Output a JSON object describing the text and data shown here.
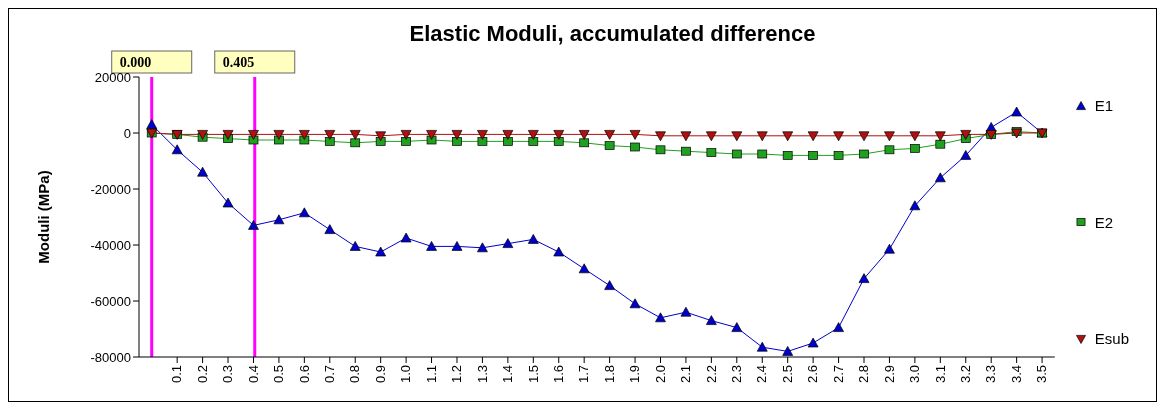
{
  "chart_data": {
    "type": "line",
    "title": "Elastic Moduli, accumulated difference",
    "ylabel": "Moduli (MPa)",
    "x": [
      0,
      0.1,
      0.2,
      0.3,
      0.4,
      0.5,
      0.6,
      0.7,
      0.8,
      0.9,
      1.0,
      1.1,
      1.2,
      1.3,
      1.4,
      1.5,
      1.6,
      1.7,
      1.8,
      1.9,
      2.0,
      2.1,
      2.2,
      2.3,
      2.4,
      2.5,
      2.6,
      2.7,
      2.8,
      2.9,
      3.0,
      3.1,
      3.2,
      3.3,
      3.4,
      3.5
    ],
    "series": [
      {
        "name": "E1",
        "color": "#0000cc",
        "marker": "triangle",
        "values": [
          3000,
          -6000,
          -14000,
          -25000,
          -33000,
          -31000,
          -28500,
          -34500,
          -40500,
          -42500,
          -37500,
          -40500,
          -40500,
          -41000,
          -39500,
          -38000,
          -42500,
          -48500,
          -54500,
          -61000,
          -66000,
          -64000,
          -67000,
          -69500,
          -76500,
          -78000,
          -75000,
          -69500,
          -52000,
          -41500,
          -26000,
          -16000,
          -8000,
          2000,
          7500,
          0
        ]
      },
      {
        "name": "E2",
        "color": "#1fa01f",
        "marker": "square",
        "values": [
          0,
          -500,
          -1500,
          -2000,
          -2500,
          -2500,
          -2500,
          -3000,
          -3500,
          -3000,
          -3000,
          -2500,
          -3000,
          -3000,
          -3000,
          -3000,
          -3000,
          -3500,
          -4500,
          -5000,
          -6000,
          -6500,
          -7000,
          -7500,
          -7500,
          -8000,
          -8000,
          -8000,
          -7500,
          -6000,
          -5500,
          -4000,
          -2000,
          -500,
          500,
          0
        ]
      },
      {
        "name": "Esub",
        "color": "#b01010",
        "marker": "triangle-down",
        "values": [
          0,
          -500,
          -500,
          -500,
          -500,
          -500,
          -500,
          -500,
          -500,
          -1000,
          -500,
          -500,
          -500,
          -500,
          -500,
          -500,
          -500,
          -500,
          -500,
          -500,
          -1000,
          -1000,
          -1000,
          -1000,
          -1000,
          -1000,
          -1000,
          -1000,
          -1000,
          -1000,
          -1000,
          -1000,
          -500,
          -500,
          0,
          0
        ]
      }
    ],
    "xlim": [
      -0.05,
      3.55
    ],
    "xticks": [
      0.1,
      0.2,
      0.3,
      0.4,
      0.5,
      0.6,
      0.7,
      0.8,
      0.9,
      {
        "value": 1,
        "label": "1.0"
      },
      1.1,
      1.2,
      1.3,
      1.4,
      1.5,
      1.6,
      1.7,
      1.8,
      1.9,
      {
        "value": 2,
        "label": "2.0"
      },
      2.1,
      2.2,
      2.3,
      2.4,
      2.5,
      2.6,
      2.7,
      2.8,
      2.9,
      {
        "value": 3,
        "label": "3.0"
      },
      3.1,
      3.2,
      3.3,
      3.4,
      3.5
    ],
    "ylim": [
      -80000,
      20000
    ],
    "yticks": [
      -80000,
      -60000,
      -40000,
      -20000,
      0,
      20000
    ],
    "ref_lines": [
      {
        "axis": "x",
        "value": 0,
        "label": "0.000",
        "color": "#ff00ff"
      },
      {
        "axis": "x",
        "value": 0.405,
        "label": "0.405",
        "color": "#ff00ff"
      }
    ],
    "grid": false,
    "legend": "right",
    "line_style": "solid"
  }
}
